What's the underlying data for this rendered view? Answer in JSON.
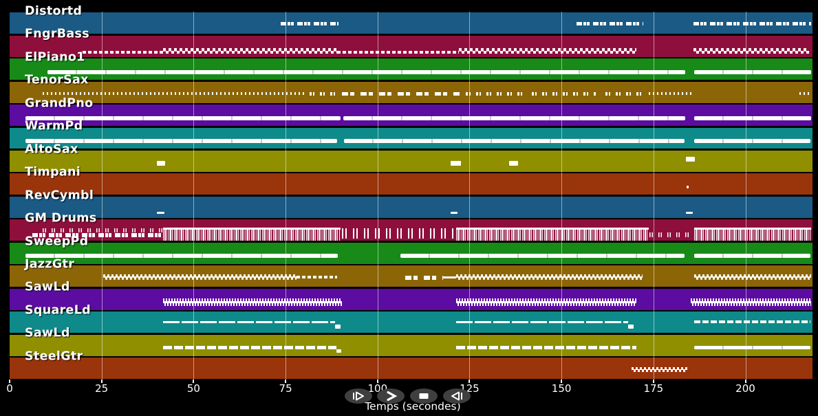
{
  "axis": {
    "label": "Temps (secondes)",
    "ticks": [
      0,
      25,
      50,
      75,
      100,
      125,
      150,
      175,
      200
    ],
    "t_max": 218
  },
  "colors": {
    "background": "#000000",
    "note": "#ffffff",
    "grid": "rgba(255,255,255,0.5)",
    "button_fill": "#3f3f3f",
    "tick_text": "#ffffff"
  },
  "controls": {
    "buttons": [
      {
        "name": "play",
        "icon": "play-icon"
      },
      {
        "name": "fast-forward",
        "icon": "fast-forward-icon"
      },
      {
        "name": "stop",
        "icon": "stop-icon"
      },
      {
        "name": "rewind",
        "icon": "rewind-icon"
      }
    ]
  },
  "tracks": [
    {
      "name": "Distortd",
      "color": "#1A5A85",
      "segments": [
        [
          73.7,
          89.4,
          "textdash",
          0.45,
          5
        ],
        [
          154.1,
          172.2,
          "textdash",
          0.45,
          5
        ],
        [
          185.9,
          217.8,
          "textdash",
          0.45,
          5
        ]
      ]
    },
    {
      "name": "FngrBass",
      "color": "#8E0F3C",
      "segments": [
        [
          19.8,
          41.7,
          "dash",
          0.72,
          4
        ],
        [
          41.7,
          89.0,
          "zigzag",
          0.6,
          8
        ],
        [
          89.0,
          122.1,
          "dash",
          0.72,
          4
        ],
        [
          122.1,
          170.4,
          "zigzag",
          0.6,
          8
        ],
        [
          185.9,
          217.4,
          "zigzag",
          0.6,
          8
        ]
      ]
    },
    {
      "name": "ElPiano1",
      "color": "#178A17",
      "segments": [
        [
          10.2,
          183.7,
          "solid",
          0.55,
          6
        ],
        [
          186.0,
          217.9,
          "solid",
          0.55,
          6
        ]
      ]
    },
    {
      "name": "TenorSax",
      "color": "#8C6606",
      "segments": [
        [
          9.0,
          80.6,
          "dots",
          0.5,
          4
        ],
        [
          81.5,
          89.9,
          "dots2",
          0.48,
          5
        ],
        [
          90.3,
          122.3,
          "groupdash",
          0.48,
          5
        ],
        [
          124.0,
          139.9,
          "dots2",
          0.48,
          5
        ],
        [
          141.9,
          159.6,
          "dots2",
          0.5,
          5
        ],
        [
          161.9,
          172.3,
          "dots2",
          0.48,
          5
        ],
        [
          173.8,
          185.3,
          "dots",
          0.5,
          4
        ],
        [
          214.7,
          217.5,
          "dots",
          0.48,
          4
        ]
      ]
    },
    {
      "name": "GrandPno",
      "color": "#5C0CA0",
      "segments": [
        [
          4.3,
          90.0,
          "solid",
          0.53,
          6
        ],
        [
          90.6,
          183.7,
          "solid",
          0.53,
          6
        ],
        [
          186.0,
          217.9,
          "solid",
          0.53,
          6
        ]
      ]
    },
    {
      "name": "WarmPd",
      "color": "#0F8A8A",
      "segments": [
        [
          4.3,
          89.0,
          "solid",
          0.53,
          6
        ],
        [
          90.8,
          183.5,
          "solid",
          0.53,
          6
        ],
        [
          186.0,
          217.7,
          "solid",
          0.53,
          6
        ]
      ]
    },
    {
      "name": "AltoSax",
      "color": "#8F8F00",
      "segments": [
        [
          40.0,
          42.3,
          "block",
          0.47,
          7
        ],
        [
          119.9,
          122.7,
          "block",
          0.47,
          7
        ],
        [
          135.8,
          138.2,
          "block",
          0.47,
          7
        ],
        [
          183.8,
          186.2,
          "block",
          0.3,
          7
        ]
      ]
    },
    {
      "name": "Timpani",
      "color": "#99340B",
      "segments": [
        [
          184.0,
          184.5,
          "block",
          0.58,
          4
        ]
      ]
    },
    {
      "name": "RevCymbl",
      "color": "#1A5A85",
      "segments": [
        [
          40.0,
          42.1,
          "block",
          0.7,
          3.5
        ],
        [
          119.9,
          121.8,
          "block",
          0.7,
          3.5
        ],
        [
          183.8,
          185.7,
          "block",
          0.7,
          3.5
        ]
      ]
    },
    {
      "name": "GM Drums",
      "color": "#8E0F3C",
      "segments": [
        [
          6.2,
          41.5,
          "textdash",
          0.64,
          6
        ],
        [
          8.9,
          41.5,
          "ticks",
          0.42,
          6
        ],
        [
          41.7,
          90.0,
          "noise",
          0.36,
          19
        ],
        [
          90.3,
          120.8,
          "bars",
          0.4,
          15
        ],
        [
          121.4,
          173.7,
          "noise",
          0.36,
          19
        ],
        [
          173.9,
          185.1,
          "ticks",
          0.6,
          7
        ],
        [
          186.0,
          217.9,
          "noise",
          0.36,
          19
        ]
      ]
    },
    {
      "name": "SweepPd",
      "color": "#178A17",
      "segments": [
        [
          4.2,
          89.2,
          "solid",
          0.53,
          6
        ],
        [
          106.2,
          183.5,
          "solid",
          0.53,
          6
        ],
        [
          186.0,
          217.7,
          "solid",
          0.53,
          6
        ]
      ]
    },
    {
      "name": "JazzGtr",
      "color": "#8C6606",
      "segments": [
        [
          25.4,
          78.0,
          "wave",
          0.42,
          8
        ],
        [
          78.0,
          89.0,
          "dash",
          0.46,
          4
        ],
        [
          107.6,
          117.8,
          "groupdash",
          0.46,
          6
        ],
        [
          117.8,
          121.4,
          "thinline",
          0.5,
          3
        ],
        [
          121.4,
          172.1,
          "wave",
          0.42,
          8
        ],
        [
          186.0,
          217.9,
          "wave",
          0.42,
          8
        ]
      ]
    },
    {
      "name": "SawLd",
      "color": "#5C0CA0",
      "segments": [
        [
          41.7,
          90.3,
          "zignoise",
          0.45,
          12
        ],
        [
          121.4,
          170.4,
          "zignoise",
          0.45,
          12
        ],
        [
          185.2,
          217.9,
          "zignoise",
          0.45,
          12
        ]
      ]
    },
    {
      "name": "SquareLd",
      "color": "#0F8A8A",
      "segments": [
        [
          41.7,
          88.4,
          "thinline",
          0.44,
          3.5
        ],
        [
          88.4,
          89.9,
          "block",
          0.6,
          6
        ],
        [
          121.4,
          168.2,
          "thinline",
          0.44,
          3.5
        ],
        [
          168.2,
          169.6,
          "block",
          0.6,
          6
        ],
        [
          186.0,
          217.7,
          "thindash",
          0.42,
          3.5
        ]
      ]
    },
    {
      "name": "SawLd",
      "color": "#8F8F00",
      "segments": [
        [
          41.7,
          88.8,
          "mdash",
          0.54,
          5
        ],
        [
          88.8,
          90.1,
          "block",
          0.7,
          5
        ],
        [
          121.4,
          170.4,
          "mdash",
          0.54,
          5
        ],
        [
          186.0,
          217.7,
          "solid",
          0.54,
          5
        ]
      ]
    },
    {
      "name": "SteelGtr",
      "color": "#99340B",
      "segments": [
        [
          169.0,
          184.2,
          "wave",
          0.45,
          7
        ]
      ]
    }
  ]
}
